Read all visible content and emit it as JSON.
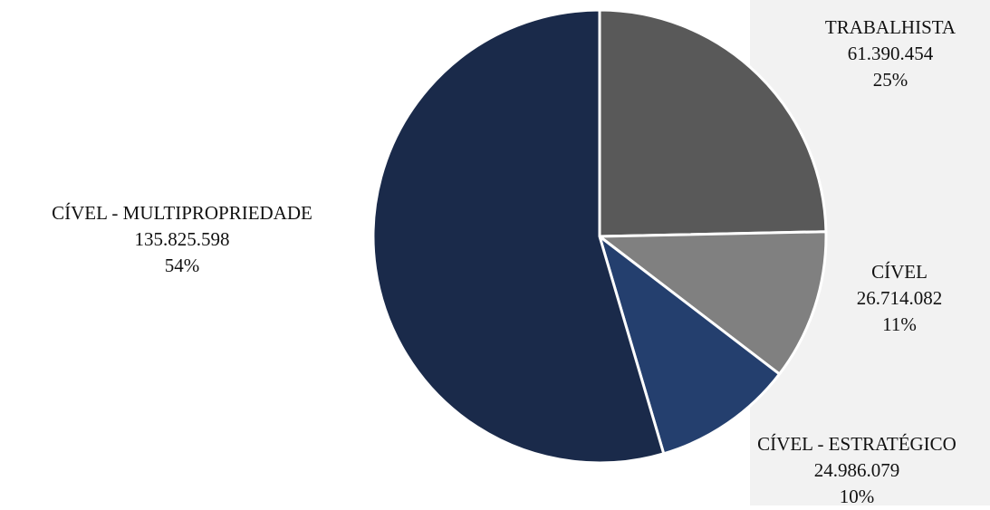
{
  "chart_data": {
    "type": "pie",
    "title": "",
    "slices": [
      {
        "label": "TRABALHISTA",
        "value": 61390454,
        "value_text": "61.390.454",
        "percent_text": "25%",
        "color": "#595959"
      },
      {
        "label": "CÍVEL",
        "value": 26714082,
        "value_text": "26.714.082",
        "percent_text": "11%",
        "color": "#808080"
      },
      {
        "label": "CÍVEL - ESTRATÉGICO",
        "value": 24986079,
        "value_text": "24.986.079",
        "percent_text": "10%",
        "color": "#243f6e"
      },
      {
        "label": "CÍVEL - MULTIPROPRIEDADE",
        "value": 135825598,
        "value_text": "135.825.598",
        "percent_text": "54%",
        "color": "#1a2a4a"
      }
    ],
    "start_angle_deg": 0,
    "direction": "clockwise",
    "slice_border_color": "#ffffff",
    "background_panel_color": "#f2f2f2"
  }
}
